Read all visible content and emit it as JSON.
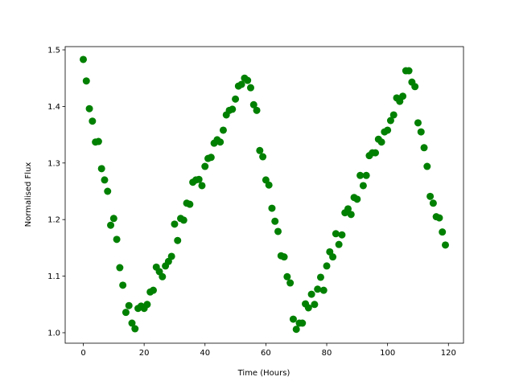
{
  "chart_data": {
    "type": "scatter",
    "xlabel": "Time (Hours)",
    "ylabel": "Normalised Flux",
    "x": [
      0,
      1,
      2,
      3,
      4,
      5,
      6,
      7,
      8,
      9,
      10,
      11,
      12,
      13,
      14,
      15,
      16,
      17,
      18,
      19,
      20,
      21,
      22,
      23,
      24,
      25,
      26,
      27,
      28,
      29,
      30,
      31,
      32,
      33,
      34,
      35,
      36,
      37,
      38,
      39,
      40,
      41,
      42,
      43,
      44,
      45,
      46,
      47,
      48,
      49,
      50,
      51,
      52,
      53,
      54,
      55,
      56,
      57,
      58,
      59,
      60,
      61,
      62,
      63,
      64,
      65,
      66,
      67,
      68,
      69,
      70,
      71,
      72,
      73,
      74,
      75,
      76,
      77,
      78,
      79,
      80,
      81,
      82,
      83,
      84,
      85,
      86,
      87,
      88,
      89,
      90,
      91,
      92,
      93,
      94,
      95,
      96,
      97,
      98,
      99,
      100,
      101,
      102,
      103,
      104,
      105,
      106,
      107,
      108,
      109,
      110,
      111,
      112,
      113,
      114,
      115,
      116,
      117,
      118,
      119
    ],
    "values": [
      1.483,
      1.445,
      1.396,
      1.374,
      1.337,
      1.338,
      1.29,
      1.27,
      1.25,
      1.19,
      1.202,
      1.165,
      1.115,
      1.084,
      1.036,
      1.048,
      1.017,
      1.007,
      1.043,
      1.047,
      1.043,
      1.05,
      1.072,
      1.075,
      1.116,
      1.108,
      1.099,
      1.118,
      1.126,
      1.135,
      1.192,
      1.163,
      1.202,
      1.199,
      1.229,
      1.227,
      1.266,
      1.27,
      1.271,
      1.26,
      1.294,
      1.308,
      1.31,
      1.335,
      1.341,
      1.337,
      1.358,
      1.385,
      1.393,
      1.395,
      1.413,
      1.436,
      1.439,
      1.45,
      1.446,
      1.433,
      1.403,
      1.393,
      1.322,
      1.311,
      1.27,
      1.261,
      1.22,
      1.197,
      1.179,
      1.136,
      1.134,
      1.099,
      1.088,
      1.024,
      1.006,
      1.017,
      1.017,
      1.051,
      1.044,
      1.068,
      1.05,
      1.077,
      1.098,
      1.075,
      1.118,
      1.143,
      1.134,
      1.175,
      1.156,
      1.173,
      1.212,
      1.219,
      1.209,
      1.239,
      1.236,
      1.278,
      1.26,
      1.278,
      1.313,
      1.318,
      1.318,
      1.342,
      1.337,
      1.355,
      1.358,
      1.375,
      1.385,
      1.415,
      1.409,
      1.418,
      1.463,
      1.463,
      1.443,
      1.435,
      1.371,
      1.355,
      1.327,
      1.294,
      1.241,
      1.229,
      1.205,
      1.203,
      1.178,
      1.155
    ],
    "color": "#008000",
    "xlim": [
      -5.95,
      124.95
    ],
    "xticks": [
      0,
      20,
      40,
      60,
      80,
      100,
      120
    ],
    "ylim": [
      0.9815,
      1.5057
    ],
    "yticks": [
      {
        "value": 1,
        "label": "1.0"
      },
      1.1,
      1.2,
      1.3,
      1.4,
      1.5
    ]
  }
}
